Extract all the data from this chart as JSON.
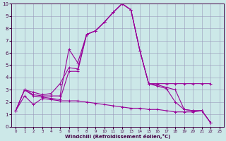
{
  "xlabel": "Windchill (Refroidissement éolien,°C)",
  "bg_color": "#cce8e8",
  "grid_color": "#9999bb",
  "line_color": "#990099",
  "xlim": [
    -0.5,
    23.5
  ],
  "ylim": [
    0,
    10
  ],
  "xticks": [
    0,
    1,
    2,
    3,
    4,
    5,
    6,
    7,
    8,
    9,
    10,
    11,
    12,
    13,
    14,
    15,
    16,
    17,
    18,
    19,
    20,
    21,
    22,
    23
  ],
  "yticks": [
    0,
    1,
    2,
    3,
    4,
    5,
    6,
    7,
    8,
    9,
    10
  ],
  "series": [
    {
      "x": [
        0,
        1,
        2,
        3,
        4,
        5,
        6,
        7,
        8,
        9,
        10,
        11,
        12,
        13,
        14,
        15,
        16,
        17,
        18,
        19,
        20,
        21,
        22
      ],
      "y": [
        1.3,
        3.0,
        2.8,
        2.6,
        2.7,
        3.5,
        4.8,
        4.7,
        7.5,
        7.8,
        8.5,
        9.3,
        10.0,
        9.5,
        6.2,
        3.5,
        3.5,
        3.5,
        3.5,
        3.5,
        3.5,
        3.5,
        3.5
      ]
    },
    {
      "x": [
        0,
        1,
        2,
        3,
        4,
        5,
        6,
        7,
        8,
        9,
        10,
        11,
        12,
        13,
        14,
        15,
        16,
        17,
        18,
        19,
        20,
        21,
        22
      ],
      "y": [
        1.3,
        3.0,
        2.6,
        2.5,
        2.5,
        2.5,
        6.3,
        5.2,
        7.5,
        7.8,
        8.5,
        9.3,
        10.0,
        9.5,
        6.2,
        3.5,
        3.4,
        3.2,
        3.0,
        1.4,
        1.3,
        1.3,
        0.3
      ]
    },
    {
      "x": [
        0,
        1,
        2,
        3,
        4,
        5,
        6,
        7,
        8,
        9,
        10,
        11,
        12,
        13,
        14,
        15,
        16,
        17,
        18,
        19,
        20,
        21,
        22
      ],
      "y": [
        1.3,
        3.0,
        2.5,
        2.4,
        2.3,
        2.2,
        4.5,
        4.5,
        7.5,
        7.8,
        8.5,
        9.3,
        10.0,
        9.5,
        6.2,
        3.5,
        3.3,
        3.1,
        2.0,
        1.4,
        1.3,
        1.3,
        0.3
      ]
    },
    {
      "x": [
        0,
        1,
        2,
        3,
        4,
        5,
        6,
        7,
        8,
        9,
        10,
        11,
        12,
        13,
        14,
        15,
        16,
        17,
        18,
        19,
        20,
        21,
        22
      ],
      "y": [
        1.3,
        2.5,
        1.8,
        2.3,
        2.2,
        2.1,
        2.1,
        2.1,
        2.0,
        1.9,
        1.8,
        1.7,
        1.6,
        1.5,
        1.5,
        1.4,
        1.4,
        1.3,
        1.2,
        1.2,
        1.2,
        1.3,
        0.3
      ]
    }
  ]
}
